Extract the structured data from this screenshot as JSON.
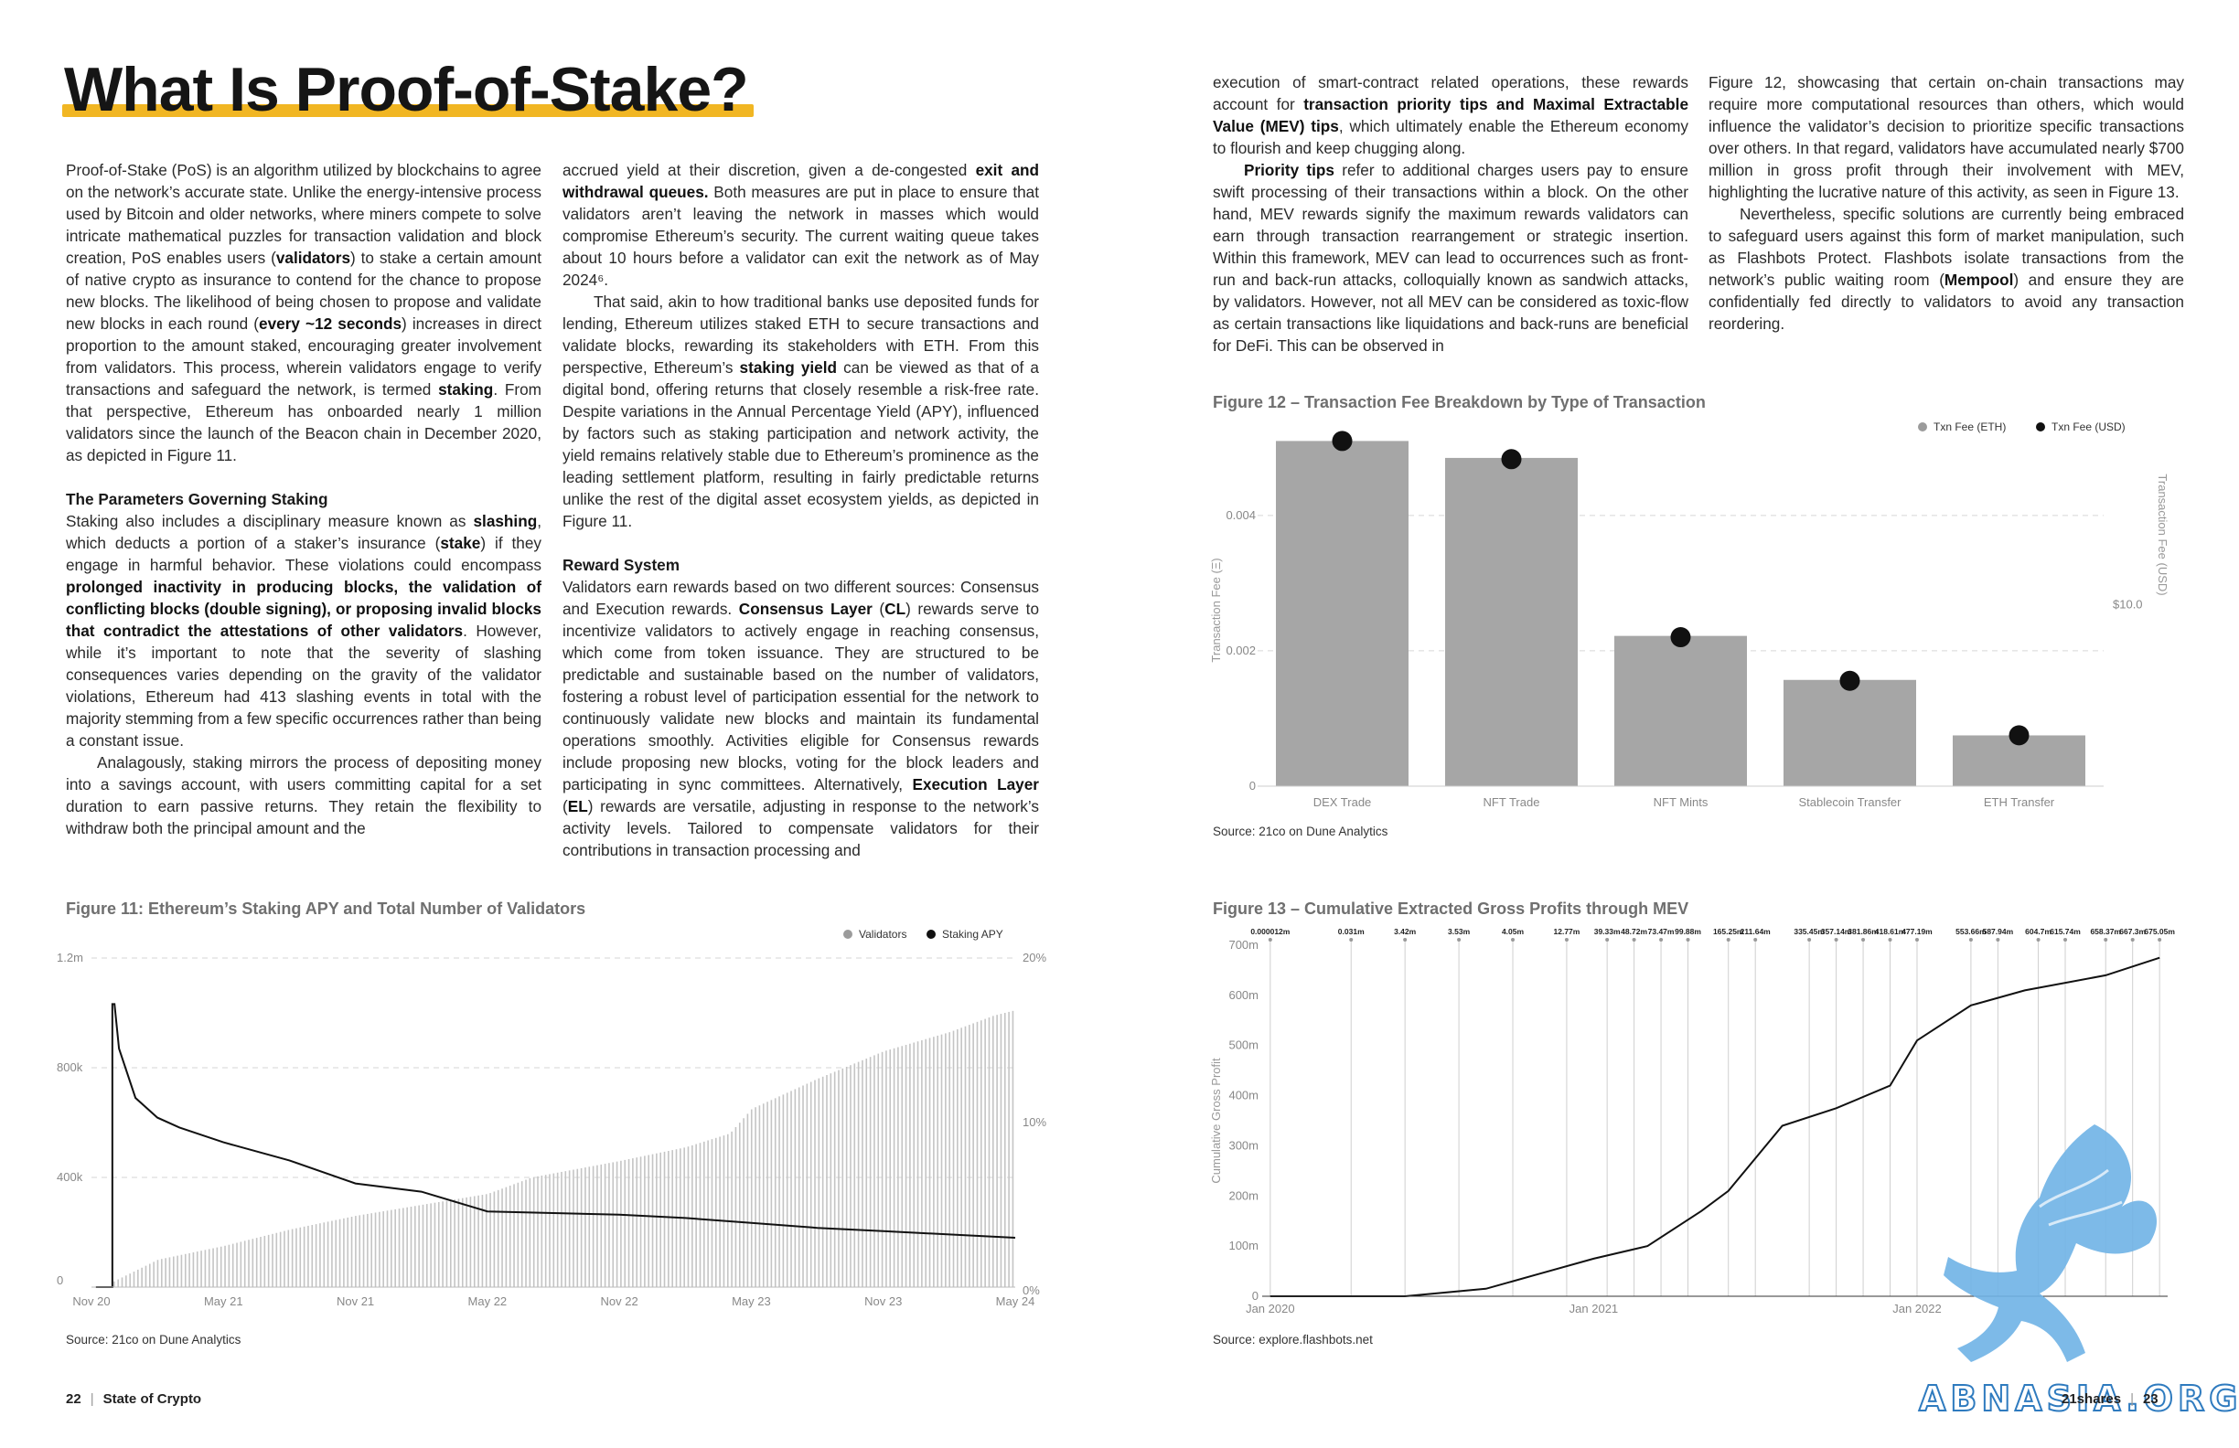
{
  "page_title": "What Is Proof-of-Stake?",
  "col1": {
    "p1": [
      {
        "t": "Proof-of-Stake (PoS) is an algorithm utilized by blockchains to agree on the network’s accurate state. Unlike the energy-intensive process used by Bitcoin and older networks, where miners compete to solve intricate mathematical puzzles for transaction validation and block creation, PoS enables users ("
      },
      {
        "t": "validators",
        "b": true
      },
      {
        "t": ") to stake a certain amount of native crypto as insurance to contend for the chance to propose new blocks. The likelihood of being chosen to propose and validate new blocks in each round ("
      },
      {
        "t": "every ~12 seconds",
        "b": true
      },
      {
        "t": ") increases in direct proportion to the amount staked, encouraging greater involvement from validators. This process, wherein validators engage to verify transactions and safeguard the network, is termed "
      },
      {
        "t": "staking",
        "b": true
      },
      {
        "t": ". From that perspective, Ethereum has onboarded nearly 1 million validators since the launch of the Beacon chain in December 2020, as depicted in Figure 11."
      }
    ],
    "heading": "The Parameters Governing Staking",
    "p2": [
      {
        "t": "Staking also includes a disciplinary measure known as "
      },
      {
        "t": "slashing",
        "b": true
      },
      {
        "t": ", which deducts a portion of a staker’s insurance ("
      },
      {
        "t": "stake",
        "b": true
      },
      {
        "t": ") if they engage in harmful behavior. These violations could encompass "
      },
      {
        "t": "prolonged inactivity in producing blocks, the validation of conflicting blocks (double signing), or proposing invalid blocks that contradict the attestations of other validators",
        "b": true
      },
      {
        "t": ". However, while it’s important to note that the severity of slashing consequences varies depending on the gravity of the validator violations, Ethereum had 413 slashing events in total with the majority stemming from a few specific occurrences rather than being a constant issue."
      }
    ],
    "p3": [
      {
        "t": "Analagously, staking mirrors the process of depositing money into a savings account, with users committing capital for a set duration to earn passive returns. They retain the flexibility to withdraw both the principal amount and the"
      }
    ]
  },
  "col2": {
    "p1": [
      {
        "t": "accrued yield at their discretion, given a de-congested "
      },
      {
        "t": "exit and withdrawal queues.",
        "b": true
      },
      {
        "t": " Both measures are put in place to ensure that validators aren’t leaving the network in masses which would compromise Ethereum’s security. The current waiting queue takes about 10 hours before a validator can exit the network as of May 2024⁶."
      }
    ],
    "p2": [
      {
        "t": "That said, akin to how traditional banks use deposited funds for lending, Ethereum utilizes staked ETH to secure transactions and validate blocks, rewarding its stakeholders with ETH. From this perspective, Ethereum’s "
      },
      {
        "t": "staking yield",
        "b": true
      },
      {
        "t": " can be viewed as that of a digital bond, offering returns that closely resemble a risk-free rate. Despite variations in the Annual Percentage Yield (APY), influenced by factors such as staking participation and network activity, the yield remains relatively stable due to Ethereum’s prominence as the leading settlement platform, resulting in fairly predictable returns unlike the rest of the digital asset ecosystem yields, as depicted in Figure 11."
      }
    ],
    "heading": "Reward System",
    "p3": [
      {
        "t": "Validators earn rewards based on two different sources: Consensus and Execution rewards. "
      },
      {
        "t": "Consensus Layer",
        "b": true
      },
      {
        "t": " ("
      },
      {
        "t": "CL",
        "b": true
      },
      {
        "t": ") rewards serve to incentivize validators to actively engage in reaching consensus, which come from token issuance. They are structured to be predictable and sustainable based on the number of validators, fostering a robust level of participation essential for the network to continuously validate new blocks and maintain its fundamental operations smoothly. Activities eligible for Consensus rewards include proposing new blocks, voting for the block leaders and participating in sync committees. Alternatively, "
      },
      {
        "t": "Execution Layer",
        "b": true
      },
      {
        "t": " ("
      },
      {
        "t": "EL",
        "b": true
      },
      {
        "t": ") rewards are versatile, adjusting in response to the network’s activity levels. Tailored to compensate validators for their contributions in transaction processing and"
      }
    ]
  },
  "col3": {
    "p1": [
      {
        "t": "execution of smart-contract related operations, these rewards account for "
      },
      {
        "t": "transaction priority tips and Maximal Extractable Value (MEV) tips",
        "b": true
      },
      {
        "t": ", which ultimately enable the Ethereum economy to flourish and keep chugging along."
      }
    ],
    "p2": [
      {
        "t": "Priority tips",
        "b": true
      },
      {
        "t": " refer to additional charges users pay to ensure swift processing of their transactions within a block. On the other hand, MEV rewards signify the maximum rewards validators can earn through transaction rearrangement or strategic insertion. Within this framework, MEV can lead to occurrences such as front-run and back-run attacks, colloquially known as sandwich attacks, by validators. However, not all MEV can be considered as toxic-flow as certain transactions like liquidations and back-runs are beneficial for DeFi. This can be observed in"
      }
    ]
  },
  "col4": {
    "p1": [
      {
        "t": "Figure 12, showcasing that certain on-chain transactions may require more computational resources than others, which would influence the validator’s decision to prioritize specific transactions over others. In that regard, validators have accumulated nearly $700 million in gross profit through their involvement with MEV, highlighting the lucrative nature of this activity, as seen in Figure 13."
      }
    ],
    "p2": [
      {
        "t": "Nevertheless, specific solutions are currently being embraced to safeguard users against this form of market manipulation, such as Flashbots Protect. Flashbots isolate transactions from the network’s public waiting room ("
      },
      {
        "t": "Mempool",
        "b": true
      },
      {
        "t": ") and ensure they are confidentially fed directly to validators to avoid any transaction reordering."
      }
    ]
  },
  "fig11": {
    "title": "Figure 11: Ethereum’s Staking APY and Total Number of Validators",
    "source": "Source: 21co on Dune Analytics"
  },
  "fig12": {
    "title": "Figure 12 – Transaction Fee Breakdown by Type of Transaction",
    "source": "Source: 21co on Dune Analytics"
  },
  "fig13": {
    "title": "Figure 13 – Cumulative Extracted Gross Profits through MEV",
    "source": "Source: explore.flashbots.net"
  },
  "footer": {
    "left_page": "22",
    "left_label": "State of Crypto",
    "right_brand": "21shares",
    "right_page": "23",
    "separator": "|"
  },
  "watermark": "ABNASIA.ORG",
  "colors": {
    "accent": "#f1b623",
    "bar": "#a6a6a6",
    "dot": "#111111",
    "watermark": "#5fa9e0"
  },
  "chart_data": [
    {
      "type": "bar",
      "title": "Figure 11: Ethereum’s Staking APY and Total Number of Validators",
      "legend": [
        "Validators",
        "Staking APY"
      ],
      "legend_position": "top-right",
      "x_ticks": [
        "Nov 20",
        "May 21",
        "Nov 21",
        "May 22",
        "Nov 22",
        "May 23",
        "Nov 23",
        "May 24"
      ],
      "y_left_ticks": [
        "0",
        "400k",
        "800k",
        "1.2m"
      ],
      "y_right_ticks": [
        "0%",
        "10%",
        "20%"
      ],
      "ylim_left": [
        0,
        1200000
      ],
      "ylim_right": [
        0,
        20
      ],
      "series": [
        {
          "name": "Validators",
          "type": "bar",
          "axis": "left",
          "x": [
            "Dec 20",
            "Feb 21",
            "May 21",
            "Aug 21",
            "Nov 21",
            "Feb 22",
            "May 22",
            "Jul 22",
            "Nov 22",
            "Feb 23",
            "Apr 23",
            "May 23",
            "Aug 23",
            "Nov 23",
            "Feb 24",
            "Apr 24",
            "May 24"
          ],
          "values": [
            21000,
            100000,
            150000,
            210000,
            260000,
            300000,
            340000,
            400000,
            460000,
            510000,
            560000,
            650000,
            760000,
            860000,
            930000,
            990000,
            1010000
          ]
        },
        {
          "name": "Staking APY",
          "type": "line",
          "axis": "right",
          "x": [
            "Dec 20",
            "Dec 20",
            "Jan 21",
            "Feb 21",
            "Mar 21",
            "May 21",
            "Aug 21",
            "Nov 21",
            "Feb 22",
            "May 22",
            "Aug 22",
            "Nov 22",
            "Feb 23",
            "May 23",
            "Aug 23",
            "Nov 23",
            "Feb 24",
            "May 24"
          ],
          "values": [
            17.2,
            14.5,
            11.5,
            10.3,
            9.7,
            8.8,
            7.7,
            6.3,
            5.8,
            4.6,
            4.5,
            4.4,
            4.2,
            3.9,
            3.6,
            3.4,
            3.2,
            3.0
          ]
        }
      ]
    },
    {
      "type": "bar",
      "title": "Figure 12 – Transaction Fee Breakdown by Type of Transaction",
      "categories": [
        "DEX Trade",
        "NFT Trade",
        "NFT Mints",
        "Stablecoin Transfer",
        "ETH Transfer"
      ],
      "ylabel": "Transaction Fee (Ξ)",
      "y2label": "Transaction Fee (USD)",
      "y_ticks": [
        "0",
        "0.002",
        "0.004"
      ],
      "y2_ticks": [
        "$10.0"
      ],
      "ylim": [
        0,
        0.0052
      ],
      "legend": [
        "Txn Fee (ETH)",
        "Txn Fee (USD)"
      ],
      "legend_position": "top-right",
      "series": [
        {
          "name": "Txn Fee (ETH)",
          "values": [
            0.0051,
            0.00485,
            0.00222,
            0.00157,
            0.00075
          ]
        },
        {
          "name": "Txn Fee (USD)",
          "values": [
            19.0,
            18.0,
            8.2,
            5.8,
            2.8
          ]
        }
      ]
    },
    {
      "type": "line",
      "title": "Figure 13 – Cumulative Extracted Gross Profits through MEV",
      "ylabel": "Cumulative Gross Profit",
      "y_ticks": [
        "0",
        "100m",
        "200m",
        "300m",
        "400m",
        "500m",
        "600m",
        "700m"
      ],
      "ylim": [
        0,
        700
      ],
      "x_ticks": [
        "Jan 2020",
        "Jan 2021",
        "Jan 2022"
      ],
      "annotations": [
        "0.000012m",
        "0.031m",
        "3.42m",
        "3.53m",
        "4.05m",
        "12.77m",
        "39.33m",
        "48.72m",
        "73.47m",
        "99.88m",
        "165.25m",
        "211.64m",
        "335.45m",
        "357.14m",
        "381.86m",
        "418.61m",
        "477.19m",
        "553.66m",
        "587.94m",
        "604.7m",
        "615.74m",
        "658.37m",
        "667.3m",
        "675.05m"
      ],
      "series": [
        {
          "name": "Cumulative Gross Profit",
          "x": [
            "Jan 2020",
            "Jun 2020",
            "Sep 2020",
            "Nov 2020",
            "Jan 2021",
            "Mar 2021",
            "May 2021",
            "Jun 2021",
            "Aug 2021",
            "Oct 2021",
            "Dec 2021",
            "Jan 2022",
            "Mar 2022",
            "May 2022",
            "Aug 2022",
            "Oct 2022"
          ],
          "values": [
            0,
            0.04,
            15,
            45,
            75,
            100,
            170,
            210,
            340,
            375,
            420,
            510,
            580,
            610,
            640,
            675
          ]
        }
      ]
    }
  ]
}
